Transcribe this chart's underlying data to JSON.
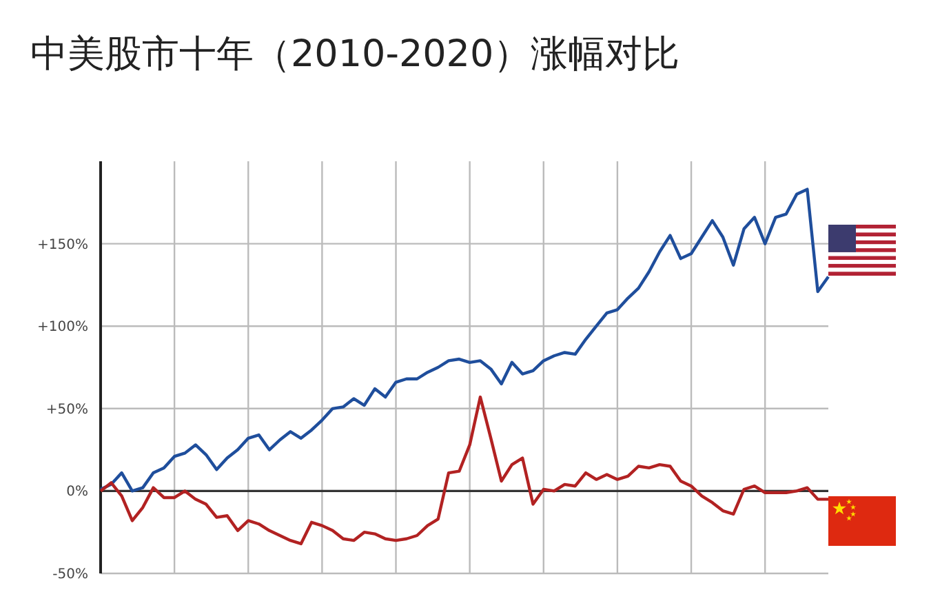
{
  "chart_data": {
    "type": "line",
    "title": "中美股市十年（2010-2020）涨幅对比",
    "categories": [
      null,
      null,
      null,
      null,
      null,
      null,
      null,
      null,
      null,
      null,
      null,
      null,
      null,
      null,
      null,
      null,
      null,
      null,
      null,
      null,
      null,
      null,
      null,
      null,
      null,
      null,
      null,
      null,
      null,
      null,
      null,
      null,
      null,
      null,
      null,
      null,
      null,
      null,
      null,
      null,
      null,
      null,
      null,
      null,
      null,
      null,
      null,
      null,
      null,
      null,
      null,
      null,
      null,
      null,
      null,
      null,
      null,
      null,
      null,
      null,
      null,
      null,
      null,
      null,
      null,
      null,
      null,
      null,
      null,
      null
    ],
    "ylim": [
      -50,
      200
    ],
    "yticks": [
      {
        "value": -50,
        "label": "-50%"
      },
      {
        "value": 0,
        "label": "0%"
      },
      {
        "value": 50,
        "label": "+50%"
      },
      {
        "value": 100,
        "label": "+100%"
      },
      {
        "value": 150,
        "label": "+150%"
      }
    ],
    "grid": true,
    "tick_labels": "y",
    "marker": "none",
    "line_style": "solid",
    "series": [
      {
        "color": "#1f4e9c",
        "values": [
          1,
          4,
          11,
          0,
          2,
          11,
          14,
          21,
          23,
          28,
          22,
          13,
          20,
          25,
          32,
          34,
          25,
          31,
          36,
          32,
          37,
          43,
          50,
          51,
          56,
          52,
          62,
          57,
          66,
          68,
          68,
          72,
          75,
          79,
          80,
          78,
          79,
          74,
          65,
          78,
          71,
          73,
          79,
          82,
          84,
          83,
          92,
          100,
          108,
          110,
          117,
          123,
          133,
          145,
          155,
          141,
          144,
          154,
          164,
          154,
          137,
          159,
          166,
          150,
          166,
          168,
          180,
          183,
          121,
          130
        ]
      },
      {
        "color": "#b22222",
        "values": [
          0,
          5,
          -3,
          -18,
          -10,
          2,
          -4,
          -4,
          0,
          -5,
          -8,
          -16,
          -15,
          -24,
          -18,
          -20,
          -24,
          -27,
          -30,
          -32,
          -19,
          -21,
          -24,
          -29,
          -30,
          -25,
          -26,
          -29,
          -30,
          -29,
          -27,
          -21,
          -17,
          11,
          12,
          28,
          57,
          32,
          6,
          16,
          20,
          -8,
          1,
          0,
          4,
          3,
          11,
          7,
          10,
          7,
          9,
          15,
          14,
          16,
          15,
          6,
          3,
          -3,
          -7,
          -12,
          -14,
          1,
          3,
          -1,
          -1,
          -1,
          0,
          2,
          -5,
          -5
        ]
      }
    ]
  }
}
